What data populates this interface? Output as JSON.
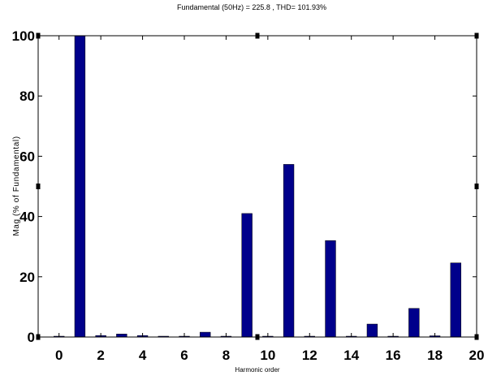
{
  "chart_data": {
    "type": "bar",
    "title": "Fundamental (50Hz) = 225.8 , THD= 101.93%",
    "xlabel": "Harmonic order",
    "ylabel": "Mag (% of Fundamental)",
    "x": [
      0,
      1,
      2,
      3,
      4,
      5,
      6,
      7,
      8,
      9,
      10,
      11,
      12,
      13,
      14,
      15,
      16,
      17,
      18,
      19
    ],
    "values": [
      0.1,
      100,
      0.5,
      1,
      0.5,
      0.2,
      0.2,
      1.6,
      0.2,
      41,
      0.2,
      57.3,
      0.2,
      32,
      0.2,
      4.3,
      0.2,
      9.5,
      0.4,
      24.6
    ],
    "xlim": [
      -1,
      20
    ],
    "ylim": [
      0,
      100
    ],
    "xticks": [
      0,
      2,
      4,
      6,
      8,
      10,
      12,
      14,
      16,
      18,
      20
    ],
    "yticks": [
      0,
      20,
      40,
      60,
      80,
      100
    ],
    "xtick_labels": [
      "0",
      "2",
      "4",
      "6",
      "8",
      "10",
      "12",
      "14",
      "16",
      "18",
      "20"
    ],
    "ytick_labels": [
      "0",
      "20",
      "40",
      "60",
      "80",
      "100"
    ],
    "bar_color": "#00008b",
    "grid": false
  }
}
